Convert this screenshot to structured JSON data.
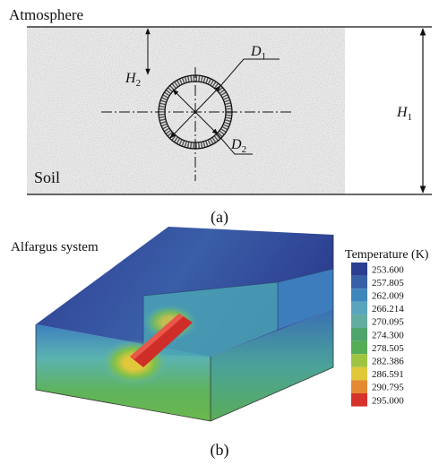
{
  "panel_a": {
    "atmosphere": "Atmosphere",
    "soil": "Soil",
    "h1": {
      "base": "H",
      "sub": "1"
    },
    "h2": {
      "base": "H",
      "sub": "2"
    },
    "d1": {
      "base": "D",
      "sub": "1"
    },
    "d2": {
      "base": "D",
      "sub": "2"
    },
    "caption": "(a)"
  },
  "panel_b": {
    "title": "Alfargus system",
    "legend": {
      "title": "Temperature (K)",
      "entries": [
        {
          "label": "253.600",
          "color": "#2b3e8f"
        },
        {
          "label": "257.805",
          "color": "#3760a6"
        },
        {
          "label": "262.009",
          "color": "#3f86bd"
        },
        {
          "label": "266.214",
          "color": "#5aa5bd"
        },
        {
          "label": "270.095",
          "color": "#62ad9f"
        },
        {
          "label": "274.300",
          "color": "#4fa46e"
        },
        {
          "label": "278.505",
          "color": "#56ad58"
        },
        {
          "label": "282.386",
          "color": "#9ec441"
        },
        {
          "label": "286.591",
          "color": "#e0c83a"
        },
        {
          "label": "290.795",
          "color": "#e38a33"
        },
        {
          "label": "295.000",
          "color": "#d5322b"
        }
      ]
    },
    "caption": "(b)"
  }
}
